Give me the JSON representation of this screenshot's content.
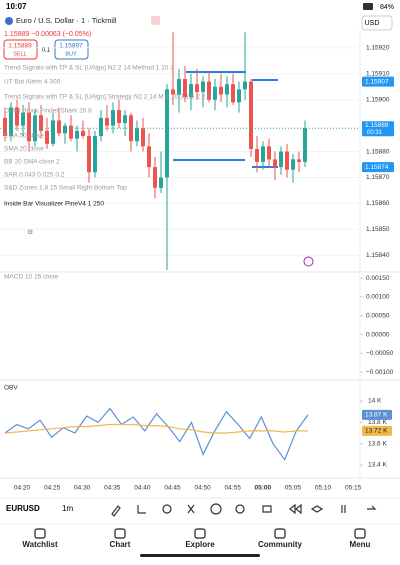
{
  "status": {
    "time": "10:07",
    "battery": "84%"
  },
  "header": {
    "symbol_title": "Euro / U.S. Dollar · 1 · Tickmill",
    "currency": "USD",
    "change": "1.15889 −0.00063 (−0.05%)"
  },
  "trade": {
    "sell_price": "1.15889",
    "sell": "SELL",
    "lot": "0.1",
    "buy_price": "1.15897",
    "buy": "BUY"
  },
  "indicators": [
    "Trend Signals with TP & SL [UAlgo] N2 2 14 Method 1 10 3",
    "UT Bot Alerts 4 300",
    "Trend Signals with TP & SL [UAlgo] Strategy N2 2 14 M 1 10 3 1.5 2 2.5",
    "Order Block Finder Shark 20 6",
    "EMA 50 close",
    "SMA 20 close",
    "BB 20 SMA close 2",
    "SAR 0.043 0.025 0.2",
    "S&D Zones 1.8 15 Small Right Bottom Top",
    "Inside Bar Visualizer PineV4 1 250"
  ],
  "price_chart": {
    "ylim": [
      1.158343,
      1.159269
    ],
    "yticks": [
      {
        "value": 1.1592,
        "label": "1.15920"
      },
      {
        "value": 1.1591,
        "label": "1.15910"
      },
      {
        "value": 1.159,
        "label": "1.15900"
      },
      {
        "value": 1.1588,
        "label": "1.15880"
      },
      {
        "value": 1.1587,
        "label": "1.15870"
      },
      {
        "value": 1.1586,
        "label": "1.15860"
      },
      {
        "value": 1.1585,
        "label": "1.15850"
      },
      {
        "value": 1.1584,
        "label": "1.15840"
      }
    ],
    "last_price": {
      "value": 1.15889,
      "label": "1.15889",
      "countdown": "00:31"
    },
    "level_labels": [
      {
        "value": 1.15907,
        "label": "1.15907"
      },
      {
        "value": 1.15874,
        "label": "1.15874"
      }
    ],
    "candles": [
      [
        1.15893,
        1.15897,
        1.15884,
        1.15886
      ],
      [
        1.15886,
        1.15899,
        1.15884,
        1.15897
      ],
      [
        1.15897,
        1.159,
        1.15888,
        1.1589
      ],
      [
        1.1589,
        1.15898,
        1.15886,
        1.15895
      ],
      [
        1.15895,
        1.15899,
        1.1588,
        1.15884
      ],
      [
        1.15884,
        1.15896,
        1.15882,
        1.15894
      ],
      [
        1.15894,
        1.15898,
        1.15885,
        1.15888
      ],
      [
        1.15888,
        1.15893,
        1.15881,
        1.15883
      ],
      [
        1.15883,
        1.15895,
        1.15882,
        1.15892
      ],
      [
        1.15892,
        1.15897,
        1.15886,
        1.15887
      ],
      [
        1.15887,
        1.15891,
        1.15883,
        1.1589
      ],
      [
        1.1589,
        1.15894,
        1.15884,
        1.15885
      ],
      [
        1.15885,
        1.1589,
        1.1588,
        1.15888
      ],
      [
        1.15888,
        1.15892,
        1.15885,
        1.15886
      ],
      [
        1.15886,
        1.15889,
        1.15868,
        1.15872
      ],
      [
        1.15872,
        1.15888,
        1.1587,
        1.15886
      ],
      [
        1.15886,
        1.15896,
        1.15884,
        1.15893
      ],
      [
        1.15893,
        1.15898,
        1.15888,
        1.1589
      ],
      [
        1.1589,
        1.15899,
        1.15887,
        1.15896
      ],
      [
        1.15896,
        1.159,
        1.15889,
        1.15891
      ],
      [
        1.15891,
        1.15896,
        1.15886,
        1.15894
      ],
      [
        1.15894,
        1.15895,
        1.1588,
        1.15884
      ],
      [
        1.15884,
        1.15892,
        1.15882,
        1.15889
      ],
      [
        1.15889,
        1.15893,
        1.1588,
        1.15882
      ],
      [
        1.15882,
        1.15887,
        1.1587,
        1.15874
      ],
      [
        1.15874,
        1.15878,
        1.15862,
        1.15866
      ],
      [
        1.15866,
        1.1588,
        1.15864,
        1.1587
      ],
      [
        1.1587,
        1.15906,
        1.15829,
        1.15904
      ],
      [
        1.15904,
        1.15926,
        1.15898,
        1.15902
      ],
      [
        1.15902,
        1.15912,
        1.15895,
        1.15908
      ],
      [
        1.15908,
        1.15913,
        1.15899,
        1.15901
      ],
      [
        1.15901,
        1.1591,
        1.15896,
        1.15906
      ],
      [
        1.15906,
        1.15912,
        1.159,
        1.15903
      ],
      [
        1.15903,
        1.15909,
        1.15897,
        1.15907
      ],
      [
        1.15907,
        1.15911,
        1.15899,
        1.159
      ],
      [
        1.159,
        1.15908,
        1.15896,
        1.15905
      ],
      [
        1.15905,
        1.1591,
        1.15899,
        1.15902
      ],
      [
        1.15902,
        1.15909,
        1.15897,
        1.15906
      ],
      [
        1.15906,
        1.1591,
        1.15898,
        1.15899
      ],
      [
        1.15899,
        1.15907,
        1.15895,
        1.15904
      ],
      [
        1.15904,
        1.15926,
        1.159,
        1.15907
      ],
      [
        1.15907,
        1.15908,
        1.15878,
        1.15881
      ],
      [
        1.15881,
        1.15886,
        1.15872,
        1.15876
      ],
      [
        1.15876,
        1.15884,
        1.15873,
        1.15882
      ],
      [
        1.15882,
        1.15885,
        1.15874,
        1.15877
      ],
      [
        1.15877,
        1.1588,
        1.15869,
        1.15874
      ],
      [
        1.15874,
        1.15882,
        1.15871,
        1.1588
      ],
      [
        1.1588,
        1.15883,
        1.1587,
        1.15873
      ],
      [
        1.15873,
        1.15879,
        1.15868,
        1.15877
      ],
      [
        1.15877,
        1.1588,
        1.15872,
        1.15876
      ],
      [
        1.15876,
        1.15892,
        1.15874,
        1.15889
      ]
    ]
  },
  "macd": {
    "title": "MACD 10 26 close",
    "ylim": [
      -0.001211,
      0.001666
    ],
    "yticks": [
      {
        "value": 0.0015,
        "label": "0.00150"
      },
      {
        "value": 0.001,
        "label": "0.00100"
      },
      {
        "value": 0.0005,
        "label": "0.00050"
      },
      {
        "value": 0,
        "label": "0.00000"
      },
      {
        "value": -0.0005,
        "label": "−0.00050"
      },
      {
        "value": -0.001,
        "label": "−0.00100"
      }
    ]
  },
  "obv": {
    "title": "OBV",
    "ylim": [
      13.297,
      14.169
    ],
    "yticks": [
      {
        "value": 14,
        "label": "14 K"
      },
      {
        "value": 13.8,
        "label": "13.8 K"
      },
      {
        "value": 13.6,
        "label": "13.6 K"
      },
      {
        "value": 13.4,
        "label": "13.4 K"
      }
    ],
    "series": [
      {
        "color": "#5b8fd6",
        "values": [
          13.7,
          13.78,
          13.74,
          13.82,
          13.66,
          13.75,
          13.7,
          13.86,
          13.8,
          13.93,
          13.78,
          13.85,
          13.72,
          13.88,
          13.76,
          13.62,
          13.8,
          13.5,
          13.72,
          13.9,
          13.78,
          13.65,
          13.85,
          13.6,
          13.45,
          13.72,
          13.87
        ],
        "last": {
          "value": 13.87,
          "label": "13.87 K"
        }
      },
      {
        "color": "#f2b84b",
        "values": [
          13.7,
          13.71,
          13.72,
          13.73,
          13.74,
          13.75,
          13.76,
          13.76,
          13.77,
          13.78,
          13.78,
          13.78,
          13.77,
          13.77,
          13.76,
          13.74,
          13.73,
          13.71,
          13.7,
          13.7,
          13.71,
          13.72,
          13.72,
          13.72,
          13.71,
          13.72,
          13.72
        ],
        "last": {
          "value": 13.72,
          "label": "13.72 K"
        }
      }
    ]
  },
  "time_axis": [
    "04:20",
    "04:25",
    "04:30",
    "04:35",
    "04:40",
    "04:45",
    "04:50",
    "04:55",
    "05:00",
    "05:05",
    "05:10",
    "05:15"
  ],
  "toolbar": {
    "symbol": "EURUSD",
    "interval": "1m"
  },
  "nav": [
    "Watchlist",
    "Chart",
    "Explore",
    "Community",
    "Menu"
  ]
}
